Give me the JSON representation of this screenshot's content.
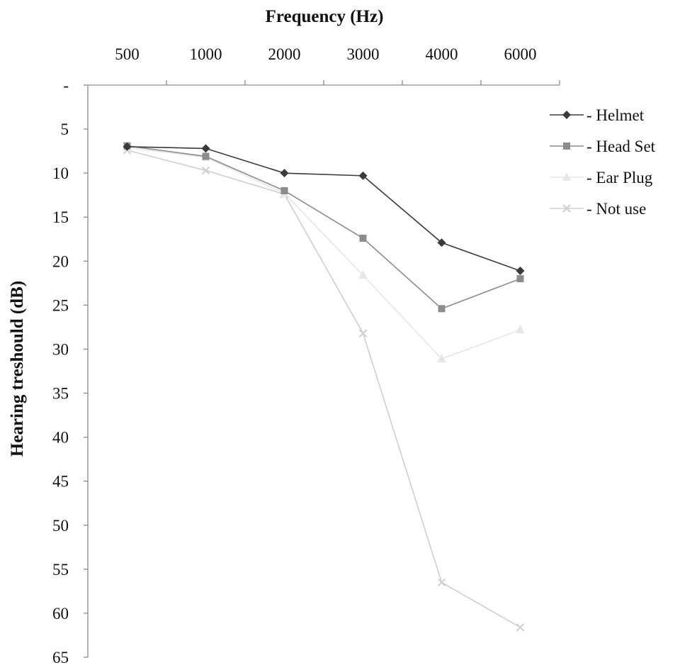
{
  "chart_data": {
    "type": "line",
    "title": "",
    "xlabel": "Frequency (Hz)",
    "ylabel": "Hearing treshould (dB)",
    "categories": [
      "500",
      "1000",
      "2000",
      "3000",
      "4000",
      "6000"
    ],
    "y_tick_labels": [
      "-",
      "5",
      "10",
      "15",
      "20",
      "25",
      "30",
      "35",
      "40",
      "45",
      "50",
      "55",
      "60",
      "65"
    ],
    "y_ticks": [
      0,
      5,
      10,
      15,
      20,
      25,
      30,
      35,
      40,
      45,
      50,
      55,
      60,
      65
    ],
    "ylim": [
      0,
      65
    ],
    "y_axis_reversed": true,
    "x_axis_position": "top",
    "grid": false,
    "legend_position": "right",
    "series": [
      {
        "name": "- Helmet",
        "marker": "diamond",
        "color": "#3a3a3a",
        "values": [
          7,
          7.2,
          10,
          10.3,
          17.9,
          21.1
        ]
      },
      {
        "name": "- Head Set",
        "marker": "square",
        "color": "#8c8c8c",
        "values": [
          6.9,
          8.1,
          12,
          17.4,
          25.4,
          22
        ]
      },
      {
        "name": "- Ear Plug",
        "marker": "triangle",
        "color": "#e6e6e6",
        "values": [
          7.1,
          8.2,
          12.3,
          21.6,
          31.1,
          27.8
        ]
      },
      {
        "name": "- Not use",
        "marker": "x",
        "color": "#cfcfcf",
        "values": [
          7.4,
          9.7,
          12.4,
          28.2,
          56.5,
          61.6
        ]
      }
    ]
  }
}
